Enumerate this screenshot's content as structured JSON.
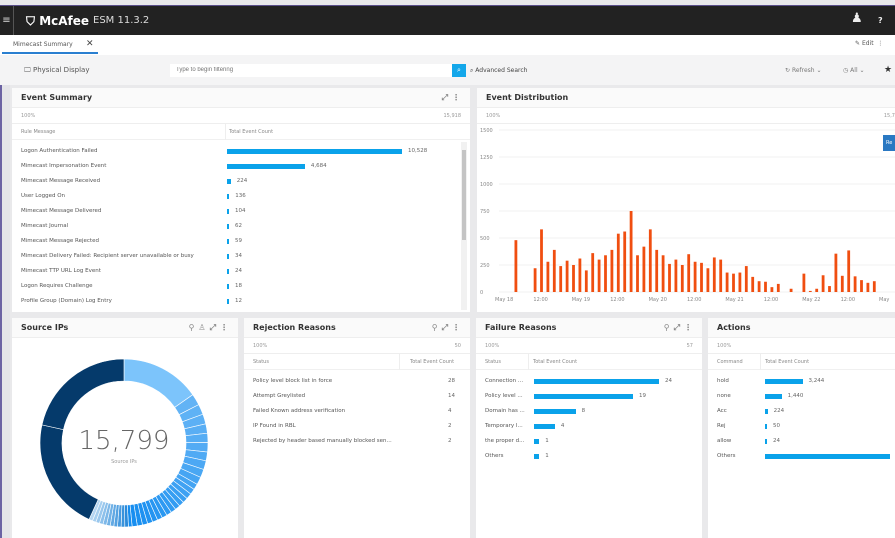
{
  "app": {
    "brand": "McAfee",
    "version": "ESM 11.3.2"
  },
  "tab": {
    "label": "Mimecast Summary"
  },
  "header": {
    "edit_label": "Edit"
  },
  "toolbar": {
    "physical_display": "Physical Display",
    "filter_placeholder": "Type to begin filtering",
    "advanced_search": "Advanced Search",
    "refresh": "Refresh",
    "time_range": "All"
  },
  "event_summary": {
    "title": "Event Summary",
    "percent": "100%",
    "total": "15,918",
    "col1": "Rule Message",
    "col2": "Total Event Count",
    "rows": [
      {
        "label": "Logon Authentication Failed",
        "value": 10528,
        "display": "10,528"
      },
      {
        "label": "Mimecast Impersonation Event",
        "value": 4684,
        "display": "4,684"
      },
      {
        "label": "Mimecast Message Received",
        "value": 224,
        "display": "224"
      },
      {
        "label": "User Logged On",
        "value": 136,
        "display": "136"
      },
      {
        "label": "Mimecast Message Delivered",
        "value": 104,
        "display": "104"
      },
      {
        "label": "Mimecast Journal",
        "value": 62,
        "display": "62"
      },
      {
        "label": "Mimecast Message Rejected",
        "value": 59,
        "display": "59"
      },
      {
        "label": "Mimecast Delivery Failed: Recipient server unavailable or busy",
        "value": 34,
        "display": "34"
      },
      {
        "label": "Mimecast TTP URL Log Event",
        "value": 24,
        "display": "24"
      },
      {
        "label": "Logon Requires Challenge",
        "value": 18,
        "display": "18"
      },
      {
        "label": "Profile Group (Domain) Log Entry",
        "value": 12,
        "display": "12"
      }
    ]
  },
  "event_distribution": {
    "title": "Event Distribution",
    "percent": "100%",
    "total": "15,7",
    "reset_label": "Re",
    "chart_data": {
      "type": "bar",
      "ylim": [
        0,
        1500
      ],
      "yticks": [
        0,
        250,
        500,
        750,
        1000,
        1250,
        1500
      ],
      "xticks": [
        "May 18",
        "12:00",
        "May 19",
        "12:00",
        "May 20",
        "12:00",
        "May 21",
        "12:00",
        "May 22",
        "12:00",
        "May"
      ],
      "color": "#f04e10",
      "points": [
        [
          "May 18 04:00",
          480
        ],
        [
          "May 18 10:00",
          220
        ],
        [
          "May 18 12:00",
          580
        ],
        [
          "May 18 14:00",
          280
        ],
        [
          "May 18 16:00",
          390
        ],
        [
          "May 18 18:00",
          240
        ],
        [
          "May 18 20:00",
          290
        ],
        [
          "May 18 22:00",
          250
        ],
        [
          "May 19 00:00",
          310
        ],
        [
          "May 19 02:00",
          200
        ],
        [
          "May 19 04:00",
          360
        ],
        [
          "May 19 06:00",
          300
        ],
        [
          "May 19 08:00",
          340
        ],
        [
          "May 19 10:00",
          390
        ],
        [
          "May 19 12:00",
          540
        ],
        [
          "May 19 14:00",
          560
        ],
        [
          "May 19 16:00",
          750
        ],
        [
          "May 19 18:00",
          340
        ],
        [
          "May 19 20:00",
          420
        ],
        [
          "May 19 22:00",
          580
        ],
        [
          "May 20 00:00",
          390
        ],
        [
          "May 20 02:00",
          340
        ],
        [
          "May 20 04:00",
          260
        ],
        [
          "May 20 06:00",
          300
        ],
        [
          "May 20 08:00",
          250
        ],
        [
          "May 20 10:00",
          350
        ],
        [
          "May 20 12:00",
          280
        ],
        [
          "May 20 14:00",
          270
        ],
        [
          "May 20 16:00",
          220
        ],
        [
          "May 20 18:00",
          320
        ],
        [
          "May 20 20:00",
          300
        ],
        [
          "May 20 22:00",
          180
        ],
        [
          "May 21 00:00",
          170
        ],
        [
          "May 21 02:00",
          180
        ],
        [
          "May 21 04:00",
          240
        ],
        [
          "May 21 06:00",
          140
        ],
        [
          "May 21 08:00",
          100
        ],
        [
          "May 21 10:00",
          95
        ],
        [
          "May 21 12:00",
          45
        ],
        [
          "May 21 14:00",
          75
        ],
        [
          "May 21 18:00",
          30
        ],
        [
          "May 21 22:00",
          170
        ],
        [
          "May 22 00:00",
          10
        ],
        [
          "May 22 02:00",
          30
        ],
        [
          "May 22 04:00",
          155
        ],
        [
          "May 22 06:00",
          55
        ],
        [
          "May 22 08:00",
          355
        ],
        [
          "May 22 10:00",
          150
        ],
        [
          "May 22 12:00",
          385
        ],
        [
          "May 22 14:00",
          145
        ],
        [
          "May 22 16:00",
          110
        ],
        [
          "May 22 18:00",
          85
        ],
        [
          "May 22 20:00",
          100
        ]
      ]
    }
  },
  "source_ips": {
    "title": "Source IPs",
    "total": "15,799",
    "caption": "Source IPs",
    "chart_data": {
      "type": "pie",
      "slice_percents": [
        15.3,
        2.2,
        2,
        1.9,
        1.8,
        1.8,
        1.8,
        1.7,
        1.7,
        1.6,
        1.5,
        1.1,
        1.1,
        1.1,
        1,
        1,
        1,
        1,
        1,
        1,
        1,
        1,
        1,
        1,
        1,
        1,
        0.7,
        0.7,
        0.7,
        0.7,
        0.7,
        0.7,
        0.7,
        0.7,
        0.7,
        0.7,
        0.7,
        0.7,
        21.7,
        21.6
      ]
    }
  },
  "rejection_reasons": {
    "title": "Rejection Reasons",
    "percent": "100%",
    "total": "50",
    "col1": "Status",
    "col2": "Total Event Count",
    "rows": [
      {
        "label": "Policy level block list in force",
        "display": "28"
      },
      {
        "label": "Attempt Greylisted",
        "display": "14"
      },
      {
        "label": "Failed Known address verification",
        "display": "4"
      },
      {
        "label": "IP Found in RBL",
        "display": "2"
      },
      {
        "label": "Rejected by header based manually blocked sen...",
        "display": "2"
      }
    ]
  },
  "failure_reasons": {
    "title": "Failure Reasons",
    "percent": "100%",
    "total": "57",
    "col1": "Status",
    "col2": "Total Event Count",
    "rows": [
      {
        "label": "Connection ...",
        "value": 24,
        "display": "24"
      },
      {
        "label": "Policy level ...",
        "value": 19,
        "display": "19"
      },
      {
        "label": "Domain has ...",
        "value": 8,
        "display": "8"
      },
      {
        "label": "Temporary l...",
        "value": 4,
        "display": "4"
      },
      {
        "label": "the proper d...",
        "value": 1,
        "display": "1"
      },
      {
        "label": "Others",
        "value": 1,
        "display": "1"
      }
    ]
  },
  "actions": {
    "title": "Actions",
    "percent": "100%",
    "col1": "Command",
    "col2": "Total Event Count",
    "rows": [
      {
        "label": "hold",
        "value": 3244,
        "display": "3,244"
      },
      {
        "label": "none",
        "value": 1440,
        "display": "1,440"
      },
      {
        "label": "Acc",
        "value": 224,
        "display": "224"
      },
      {
        "label": "Rej",
        "value": 50,
        "display": "50"
      },
      {
        "label": "allow",
        "value": 24,
        "display": "24"
      },
      {
        "label": "Others",
        "value": 10800,
        "display": ""
      }
    ]
  }
}
